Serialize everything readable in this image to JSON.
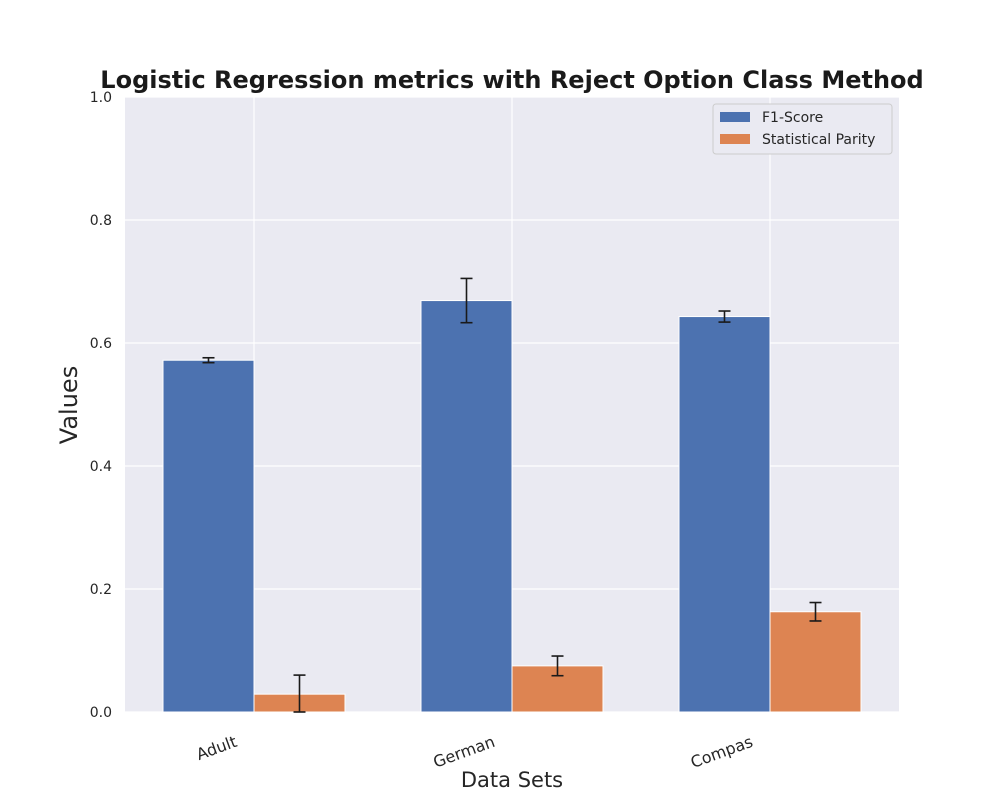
{
  "chart_data": {
    "type": "bar",
    "title": "Logistic Regression metrics with Reject Option Class Method",
    "xlabel": "Data Sets",
    "ylabel": "Values",
    "categories": [
      "Adult",
      "German",
      "Compas"
    ],
    "ylim": [
      0,
      1.0
    ],
    "yticks": [
      "0.0",
      "0.2",
      "0.4",
      "0.6",
      "0.8",
      "1.0"
    ],
    "grid": true,
    "legend_position": "top-right",
    "series": [
      {
        "name": "F1-Score",
        "color": "#4c72b0",
        "values": [
          0.572,
          0.669,
          0.643
        ],
        "errors": [
          0.004,
          0.036,
          0.009
        ]
      },
      {
        "name": "Statistical Parity",
        "color": "#dd8452",
        "values": [
          0.029,
          0.075,
          0.163
        ],
        "errors": [
          0.031,
          0.016,
          0.015
        ]
      }
    ]
  }
}
